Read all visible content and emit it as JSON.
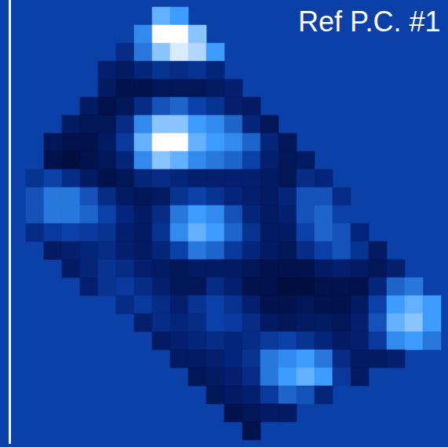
{
  "chart_data": {
    "type": "heatmap",
    "title": "Ref P.C. #1",
    "tick_labels": false,
    "zlim": [
      -1,
      1
    ],
    "values": [
      [
        null,
        null,
        null,
        null,
        null,
        null,
        null,
        null,
        0.6,
        0.5,
        null,
        null,
        null,
        null,
        null,
        null,
        null,
        null,
        null,
        null,
        null,
        null,
        null,
        null
      ],
      [
        null,
        null,
        null,
        null,
        null,
        null,
        null,
        0.4,
        1.0,
        1.0,
        0.7,
        null,
        null,
        null,
        null,
        null,
        null,
        null,
        null,
        null,
        null,
        null,
        null,
        null
      ],
      [
        null,
        null,
        null,
        null,
        null,
        null,
        -0.3,
        0.3,
        0.7,
        0.9,
        0.8,
        0.5,
        null,
        null,
        null,
        null,
        null,
        null,
        null,
        null,
        null,
        null,
        null,
        null
      ],
      [
        null,
        null,
        null,
        null,
        null,
        -0.5,
        -0.6,
        -0.4,
        -0.2,
        -0.3,
        -0.2,
        -0.4,
        null,
        null,
        null,
        null,
        null,
        null,
        null,
        null,
        null,
        null,
        null,
        null
      ],
      [
        null,
        null,
        null,
        null,
        null,
        -0.6,
        -0.8,
        -0.8,
        -0.7,
        -0.7,
        -0.7,
        -0.6,
        -0.5,
        null,
        null,
        null,
        null,
        null,
        null,
        null,
        null,
        null,
        null,
        null
      ],
      [
        null,
        null,
        null,
        null,
        -0.6,
        -0.8,
        -0.7,
        -0.3,
        0.1,
        0.2,
        0.0,
        -0.2,
        -0.5,
        -0.6,
        null,
        null,
        null,
        null,
        null,
        null,
        null,
        null,
        null,
        null
      ],
      [
        null,
        null,
        null,
        -0.6,
        -0.7,
        -0.7,
        -0.3,
        0.4,
        0.7,
        0.7,
        0.5,
        0.4,
        0.2,
        -0.4,
        -0.7,
        null,
        null,
        null,
        null,
        null,
        null,
        null,
        null,
        null
      ],
      [
        null,
        null,
        -0.7,
        -0.8,
        -0.8,
        -0.6,
        -0.1,
        0.6,
        1.0,
        1.0,
        0.6,
        0.5,
        0.4,
        0.2,
        -0.4,
        -0.7,
        null,
        null,
        null,
        null,
        null,
        null,
        null,
        null
      ],
      [
        null,
        null,
        -0.8,
        -0.9,
        -0.8,
        -0.7,
        -0.4,
        0.4,
        0.7,
        0.6,
        0.4,
        0.3,
        0.2,
        0.0,
        -0.5,
        -0.7,
        -0.6,
        null,
        null,
        null,
        null,
        null,
        null,
        null
      ],
      [
        null,
        -0.2,
        0.0,
        -0.3,
        -0.6,
        -0.8,
        -0.7,
        -0.4,
        -0.3,
        -0.4,
        -0.5,
        -0.5,
        -0.5,
        -0.5,
        -0.6,
        -0.7,
        -0.3,
        -0.4,
        null,
        null,
        null,
        null,
        null,
        null
      ],
      [
        null,
        0.1,
        0.3,
        0.3,
        0.1,
        -0.3,
        -0.6,
        -0.7,
        -0.6,
        -0.2,
        0.0,
        -0.2,
        -0.4,
        -0.5,
        -0.6,
        -0.4,
        0.1,
        0.1,
        -0.3,
        null,
        null,
        null,
        null,
        null
      ],
      [
        null,
        0.1,
        0.3,
        0.3,
        0.2,
        0.0,
        -0.4,
        -0.6,
        -0.3,
        0.3,
        0.5,
        0.4,
        0.1,
        -0.4,
        -0.6,
        -0.5,
        0.1,
        0.2,
        0.0,
        null,
        null,
        null,
        null,
        null
      ],
      [
        null,
        -0.3,
        -0.1,
        0.0,
        -0.1,
        -0.2,
        -0.5,
        -0.6,
        -0.2,
        0.4,
        0.6,
        0.5,
        0.2,
        -0.2,
        -0.6,
        -0.6,
        0.0,
        0.2,
        0.1,
        -0.4,
        null,
        null,
        null,
        null
      ],
      [
        null,
        null,
        -0.6,
        -0.5,
        -0.4,
        -0.3,
        -0.5,
        -0.6,
        -0.4,
        0.0,
        0.3,
        0.2,
        -0.1,
        -0.4,
        -0.6,
        -0.7,
        -0.3,
        0.0,
        0.1,
        -0.2,
        -0.6,
        null,
        null,
        null
      ],
      [
        null,
        null,
        null,
        -0.6,
        -0.4,
        -0.2,
        -0.3,
        -0.5,
        -0.6,
        -0.7,
        -0.6,
        -0.6,
        -0.6,
        -0.7,
        -0.8,
        -0.8,
        -0.8,
        -0.6,
        -0.5,
        -0.6,
        -0.7,
        -0.5,
        null,
        null
      ],
      [
        null,
        null,
        null,
        null,
        -0.5,
        -0.2,
        -0.1,
        -0.3,
        -0.5,
        -0.7,
        -0.7,
        -0.3,
        -0.5,
        -0.8,
        -0.8,
        -0.9,
        -0.9,
        -0.8,
        -0.8,
        -0.8,
        -0.4,
        0.2,
        0.3,
        null
      ],
      [
        null,
        null,
        null,
        null,
        null,
        null,
        -0.3,
        -0.1,
        -0.3,
        -0.5,
        -0.2,
        0.0,
        -0.2,
        -0.5,
        -0.8,
        -0.8,
        -0.7,
        -0.8,
        -0.8,
        -0.6,
        0.0,
        0.5,
        0.6,
        0.5
      ],
      [
        null,
        null,
        null,
        null,
        null,
        null,
        null,
        -0.5,
        -0.3,
        -0.4,
        -0.3,
        0.0,
        -0.1,
        -0.3,
        -0.6,
        -0.7,
        -0.6,
        -0.6,
        -0.7,
        -0.5,
        0.1,
        0.6,
        0.7,
        0.5
      ],
      [
        null,
        null,
        null,
        null,
        null,
        null,
        null,
        null,
        -0.6,
        -0.5,
        -0.4,
        -0.3,
        -0.4,
        -0.3,
        -0.1,
        0.0,
        -0.2,
        -0.4,
        -0.6,
        -0.5,
        -0.1,
        0.4,
        0.5,
        0.3
      ],
      [
        null,
        null,
        null,
        null,
        null,
        null,
        null,
        null,
        null,
        -0.6,
        -0.6,
        -0.5,
        -0.4,
        -0.2,
        0.3,
        0.4,
        0.5,
        0.3,
        -0.3,
        -0.6,
        -0.6,
        -0.5,
        null,
        null
      ],
      [
        null,
        null,
        null,
        null,
        null,
        null,
        null,
        null,
        null,
        null,
        -0.7,
        -0.6,
        -0.5,
        -0.3,
        0.3,
        0.5,
        0.6,
        0.5,
        -0.1,
        -0.6,
        null,
        null,
        null,
        null
      ],
      [
        null,
        null,
        null,
        null,
        null,
        null,
        null,
        null,
        null,
        null,
        null,
        -0.7,
        -0.6,
        -0.5,
        -0.1,
        0.2,
        0.1,
        -0.4,
        null,
        null,
        null,
        null,
        null,
        null
      ],
      [
        null,
        null,
        null,
        null,
        null,
        null,
        null,
        null,
        null,
        null,
        null,
        null,
        -0.8,
        -0.7,
        -0.6,
        -0.6,
        null,
        null,
        null,
        null,
        null,
        null,
        null,
        null
      ],
      [
        null,
        null,
        null,
        null,
        null,
        null,
        null,
        null,
        null,
        null,
        null,
        null,
        null,
        -0.8,
        null,
        null,
        null,
        null,
        null,
        null,
        null,
        null,
        null,
        null
      ]
    ]
  }
}
